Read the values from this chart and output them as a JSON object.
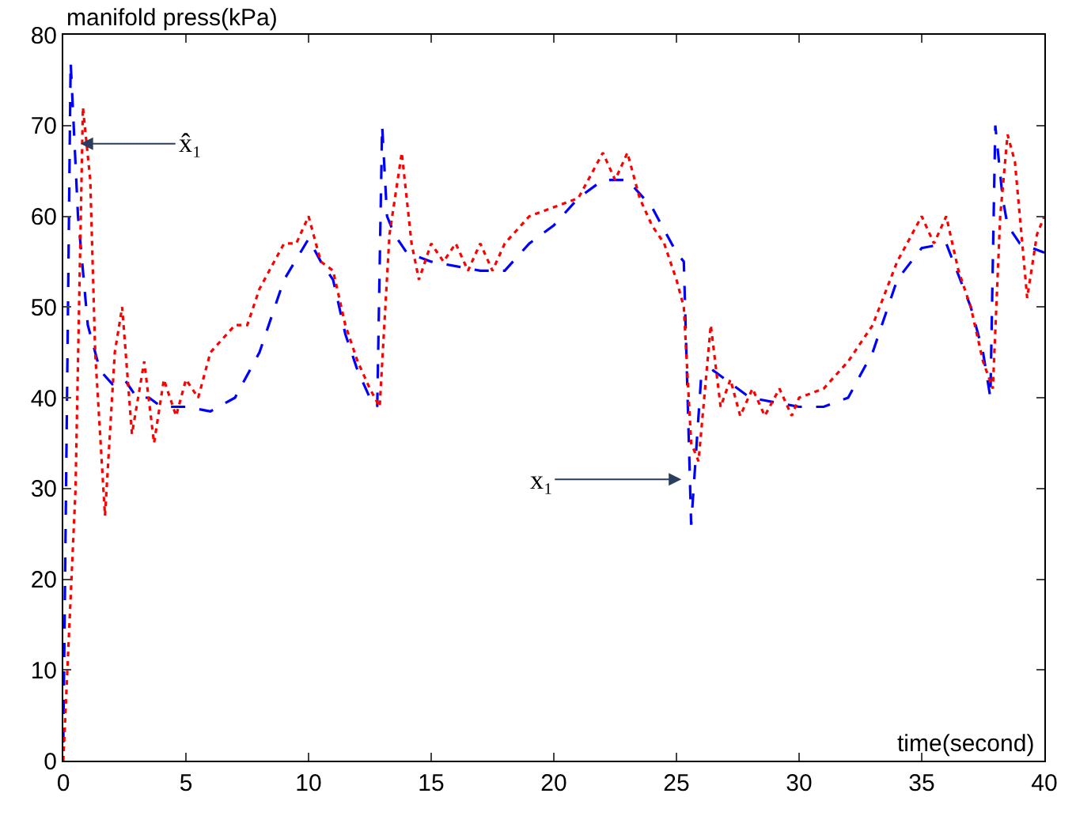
{
  "chart_data": {
    "type": "line",
    "xlabel": "time(second)",
    "ylabel": "manifold press(kPa)",
    "xlim": [
      0,
      40
    ],
    "ylim": [
      0,
      80
    ],
    "xticks": [
      0,
      5,
      10,
      15,
      20,
      25,
      30,
      35,
      40
    ],
    "yticks": [
      0,
      10,
      20,
      30,
      40,
      50,
      60,
      70,
      80
    ],
    "marker": "none",
    "annotations": [
      {
        "text": "x̂₁",
        "x": 0.7,
        "y": 68
      },
      {
        "text": "x₁",
        "x": 25.2,
        "y": 31
      }
    ],
    "series": [
      {
        "color": "#0000ff",
        "line_style": "dashed",
        "x": [
          0,
          0.3,
          0.6,
          1,
          1.5,
          2,
          2.5,
          3,
          3.5,
          4,
          5,
          6,
          7,
          8,
          9,
          10,
          10.5,
          11,
          11.5,
          12,
          12.5,
          12.8,
          13,
          13.2,
          13.5,
          14,
          15,
          16,
          17,
          18,
          19,
          20,
          21,
          22,
          23,
          24,
          25,
          25.3,
          25.6,
          26,
          26.5,
          27,
          28,
          29,
          30,
          31,
          32,
          33,
          34,
          35,
          36,
          37,
          37.5,
          37.8,
          38,
          38.3,
          38.5,
          39,
          40
        ],
        "values": [
          2,
          77,
          60,
          48,
          43,
          41.5,
          42,
          40,
          40,
          39,
          39,
          38.5,
          40,
          45,
          53,
          57.5,
          55,
          53,
          47,
          43,
          40,
          39,
          70,
          60,
          58,
          56,
          55,
          54.5,
          54,
          54,
          57,
          59,
          62,
          64,
          64,
          61,
          56,
          55,
          26,
          42,
          43,
          42,
          40,
          39.5,
          39,
          39,
          40,
          45,
          53,
          56.5,
          57,
          50,
          45,
          40,
          70,
          62,
          59,
          57,
          56
        ]
      },
      {
        "color": "#ff0000",
        "line_style": "dotted",
        "x": [
          0,
          0.5,
          0.8,
          1.1,
          1.3,
          1.7,
          2.1,
          2.4,
          2.8,
          3.3,
          3.7,
          4.1,
          4.6,
          5,
          5.5,
          6,
          7,
          7.5,
          8,
          9,
          9.5,
          10,
          10.5,
          11,
          11.5,
          12,
          12.5,
          12.9,
          13.3,
          13.8,
          14.2,
          14.5,
          15,
          15.5,
          16,
          16.5,
          17,
          17.5,
          18,
          19,
          20,
          21,
          22,
          22.5,
          23,
          23.5,
          24,
          24.5,
          25,
          25.3,
          25.6,
          25.9,
          26.4,
          26.8,
          27.2,
          27.6,
          28.1,
          28.6,
          29.2,
          29.7,
          30,
          31,
          32,
          33,
          34,
          35,
          35.5,
          36,
          36.5,
          37,
          37.5,
          37.9,
          38.2,
          38.5,
          38.8,
          39.3,
          39.7,
          40
        ],
        "values": [
          0,
          30,
          72,
          64,
          45,
          27,
          45,
          50,
          36,
          44,
          35,
          42,
          38,
          42,
          40,
          45,
          48,
          48,
          52,
          57,
          57,
          60,
          55,
          54,
          48,
          44,
          41,
          39,
          58,
          67,
          57,
          53,
          57,
          55,
          57,
          54,
          57,
          54,
          57,
          60,
          61,
          62,
          67,
          64,
          67,
          62,
          59,
          57,
          53,
          50,
          35,
          33,
          48,
          39,
          42,
          38,
          41,
          38,
          41,
          38,
          40,
          41,
          44,
          48,
          55,
          60,
          57,
          60,
          54,
          50,
          44,
          41,
          60,
          69,
          66,
          51,
          58,
          60
        ]
      }
    ]
  }
}
